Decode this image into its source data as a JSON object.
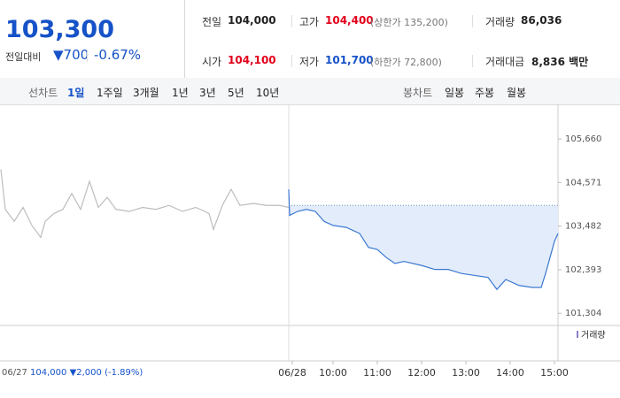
{
  "header": {
    "price": "103,300",
    "change_label": "전일대비",
    "change": "▼700",
    "change_pct": "-0.67%"
  },
  "stats": [
    {
      "label": "전일",
      "value": "104,000"
    },
    {
      "label": "고가",
      "value": "104,400",
      "note": "(상한가 135,200)"
    },
    {
      "label": "거래량",
      "value": "86,036"
    },
    {
      "label": "시가",
      "value": "104,100"
    },
    {
      "label": "저가",
      "value": "101,700",
      "note": "(하한가 72,800)"
    },
    {
      "label": "거래대금",
      "value": "8,836 백만"
    }
  ],
  "tabs": {
    "line_label": "선차트",
    "line_periods": [
      "1일",
      "1주일",
      "3개월",
      "1년",
      "3년",
      "5년",
      "10년"
    ],
    "candle_label": "봉차트",
    "candle_periods": [
      "일봉",
      "주봉",
      "월봉"
    ]
  },
  "footer": {
    "date": "06/27",
    "close": "104,000",
    "change": "▼2,000",
    "change_pct": "(-1.89%)"
  },
  "chart_data": {
    "type": "line",
    "volume_legend": "거래량",
    "base_value": 104000,
    "xlim": [
      2.48,
      15.08
    ],
    "ylim": [
      101000,
      106480
    ],
    "yticks": [
      {
        "value": 105660,
        "label": "105,660"
      },
      {
        "value": 104571,
        "label": "104,571"
      },
      {
        "value": 103482,
        "label": "103,482"
      },
      {
        "value": 102393,
        "label": "102,393"
      },
      {
        "value": 101304,
        "label": "101,304"
      }
    ],
    "xticks": [
      {
        "value": 9.08,
        "label": "06/28"
      },
      {
        "value": 10,
        "label": "10:00"
      },
      {
        "value": 11,
        "label": "11:00"
      },
      {
        "value": 12,
        "label": "12:00"
      },
      {
        "value": 13,
        "label": "13:00"
      },
      {
        "value": 14,
        "label": "14:00"
      },
      {
        "value": 15,
        "label": "15:00"
      }
    ],
    "series": [
      {
        "name": "06/27",
        "color": "#bdbdbd",
        "x": [
          2.5,
          2.6,
          2.8,
          3.0,
          3.2,
          3.4,
          3.5,
          3.7,
          3.9,
          4.1,
          4.3,
          4.5,
          4.7,
          4.9,
          5.1,
          5.4,
          5.7,
          6.0,
          6.3,
          6.6,
          6.9,
          7.2,
          7.3,
          7.5,
          7.7,
          7.9,
          8.2,
          8.5,
          8.8,
          9.0
        ],
        "values": [
          104900,
          103900,
          103600,
          103950,
          103500,
          103200,
          103600,
          103800,
          103900,
          104300,
          103900,
          104600,
          103950,
          104200,
          103900,
          103850,
          103950,
          103900,
          104000,
          103850,
          103950,
          103800,
          103400,
          104000,
          104400,
          104000,
          104050,
          104000,
          104000,
          103950
        ]
      },
      {
        "name": "06/28",
        "color": "#3a78d2",
        "x": [
          9.0,
          9.02,
          9.2,
          9.4,
          9.6,
          9.8,
          10.0,
          10.3,
          10.6,
          10.8,
          11.0,
          11.2,
          11.4,
          11.6,
          12.0,
          12.3,
          12.6,
          12.9,
          13.2,
          13.5,
          13.7,
          13.9,
          14.2,
          14.5,
          14.7,
          14.8,
          14.9,
          15.0,
          15.08
        ],
        "values": [
          104400,
          103750,
          103850,
          103900,
          103850,
          103600,
          103500,
          103450,
          103300,
          102950,
          102900,
          102700,
          102550,
          102600,
          102500,
          102400,
          102400,
          102300,
          102250,
          102200,
          101900,
          102150,
          102000,
          101950,
          101950,
          102300,
          102700,
          103100,
          103300
        ]
      }
    ]
  }
}
